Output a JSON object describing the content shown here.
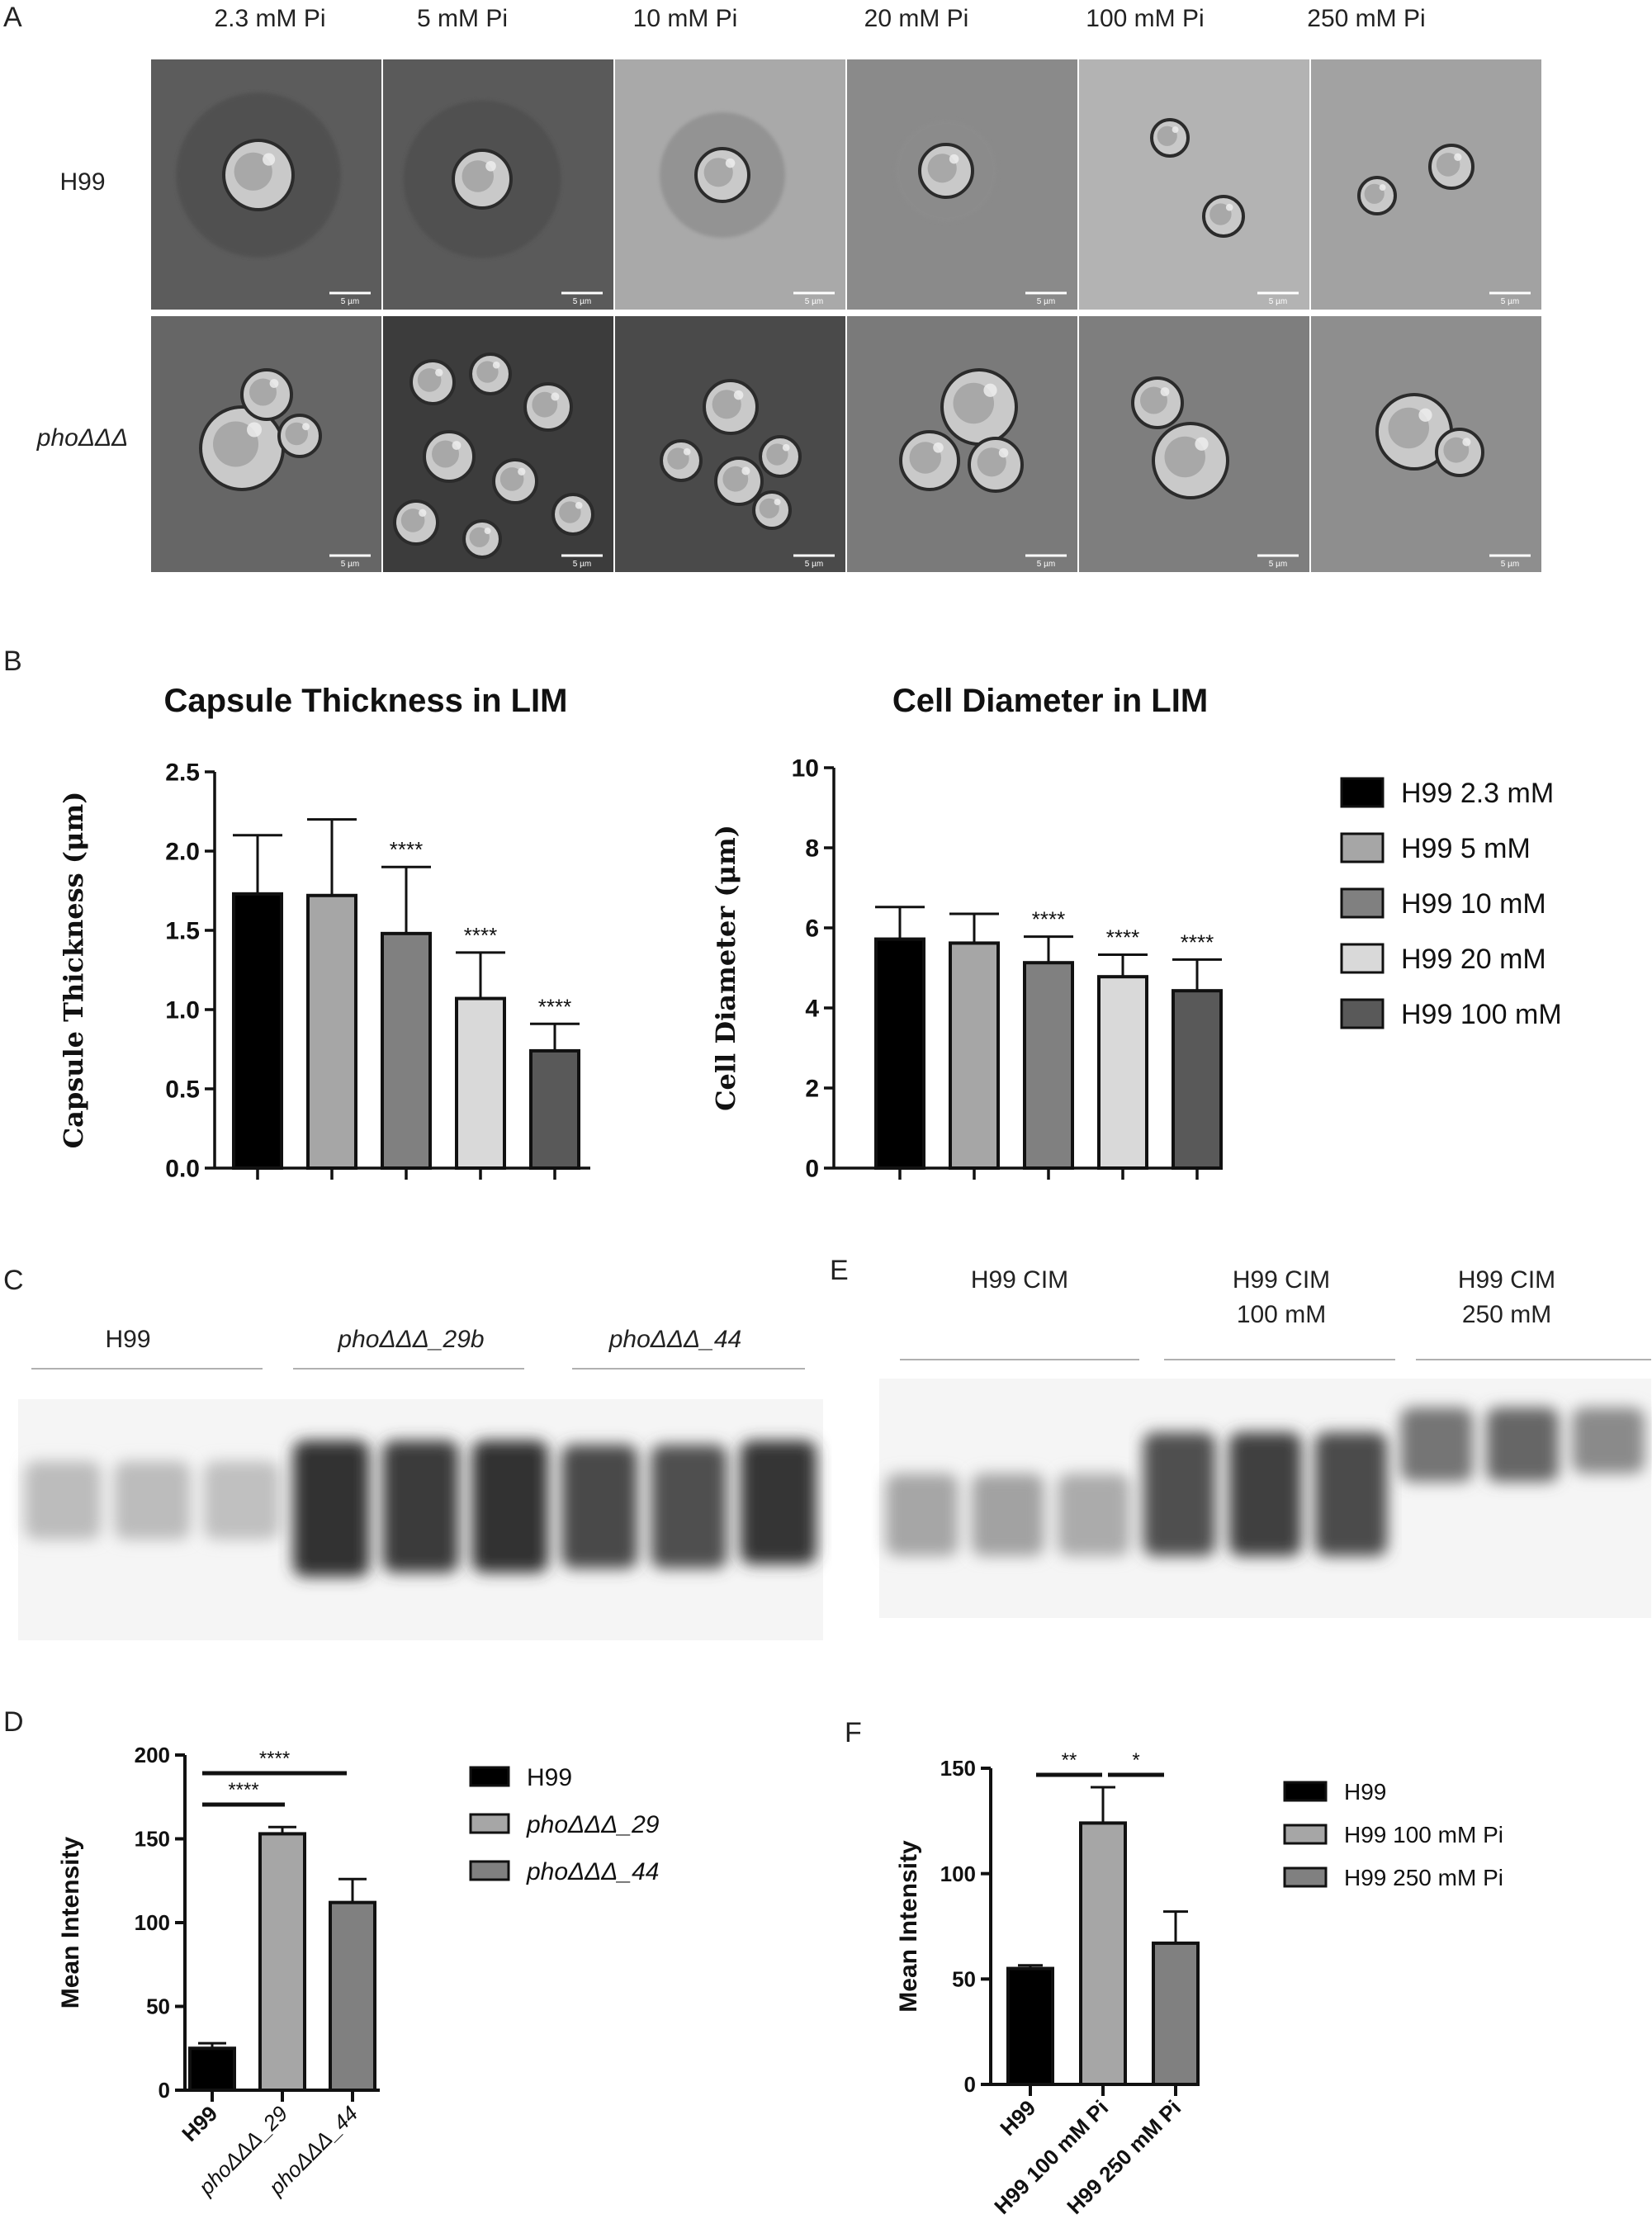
{
  "panel_letters": [
    "A",
    "B",
    "C",
    "D",
    "E",
    "F"
  ],
  "micrographs": {
    "columns": [
      "2.3 mM Pi",
      "5 mM Pi",
      "10 mM Pi",
      "20 mM Pi",
      "100 mM Pi",
      "250 mM Pi"
    ],
    "rows": [
      "H99",
      "phoΔΔΔ"
    ],
    "scale_label": "5 µm"
  },
  "gel_c": {
    "groups": [
      "H99",
      "phoΔΔΔ_29b",
      "phoΔΔΔ_44"
    ],
    "lanes_per_group": 3,
    "lane_intensity": [
      0.22,
      0.22,
      0.2,
      0.86,
      0.82,
      0.86,
      0.76,
      0.72,
      0.84
    ]
  },
  "gel_e": {
    "groups": [
      [
        "H99 CIM"
      ],
      [
        "H99 CIM",
        "100 mM"
      ],
      [
        "H99 CIM",
        "250 mM"
      ]
    ],
    "lanes_per_group": 3,
    "lane_intensity": [
      0.32,
      0.34,
      0.3,
      0.72,
      0.8,
      0.74,
      0.55,
      0.62,
      0.45
    ]
  },
  "chart_data": [
    {
      "id": "capsule",
      "type": "bar",
      "title": "Capsule Thickness in LIM",
      "ylabel": "Capsule Thickness (μm)",
      "ylim": [
        0,
        2.5
      ],
      "yticks": [
        "0.0",
        "0.5",
        "1.0",
        "1.5",
        "2.0",
        "2.5"
      ],
      "categories": [
        "H99 2.3 mM",
        "H99 5 mM",
        "H99 10 mM",
        "H99 20 mM",
        "H99 100 mM"
      ],
      "values": [
        1.73,
        1.72,
        1.48,
        1.07,
        0.74
      ],
      "errors": [
        0.37,
        0.48,
        0.42,
        0.29,
        0.17
      ],
      "annotations": [
        "",
        "",
        "****",
        "****",
        "****"
      ],
      "colors": [
        "#000000",
        "#a6a6a6",
        "#808080",
        "#d9d9d9",
        "#595959"
      ]
    },
    {
      "id": "diameter",
      "type": "bar",
      "title": "Cell Diameter in LIM",
      "ylabel": "Cell Diameter (μm)",
      "ylim": [
        0,
        10
      ],
      "yticks": [
        "0",
        "2",
        "4",
        "6",
        "8",
        "10"
      ],
      "categories": [
        "H99 2.3 mM",
        "H99 5 mM",
        "H99 10 mM",
        "H99 20 mM",
        "H99 100 mM"
      ],
      "values": [
        5.72,
        5.62,
        5.13,
        4.78,
        4.43
      ],
      "errors": [
        0.8,
        0.73,
        0.65,
        0.55,
        0.78
      ],
      "annotations": [
        "",
        "",
        "****",
        "****",
        "****"
      ],
      "colors": [
        "#000000",
        "#a6a6a6",
        "#808080",
        "#d9d9d9",
        "#595959"
      ],
      "legend": [
        "H99 2.3 mM",
        "H99 5 mM",
        "H99 10 mM",
        "H99 20 mM",
        "H99 100 mM"
      ]
    },
    {
      "id": "intensity_d",
      "type": "bar",
      "ylabel": "Mean Intensity",
      "ylim": [
        0,
        200
      ],
      "yticks": [
        "0",
        "50",
        "100",
        "150",
        "200"
      ],
      "categories": [
        "H99",
        "phoΔΔΔ_29",
        "phoΔΔΔ_44"
      ],
      "values": [
        25,
        153,
        112
      ],
      "errors": [
        3,
        4,
        14
      ],
      "colors": [
        "#000000",
        "#a6a6a6",
        "#808080"
      ],
      "legend": [
        "H99",
        "phoΔΔΔ_29",
        "phoΔΔΔ_44"
      ],
      "significance": [
        {
          "from": 0,
          "to": 1,
          "label": "****"
        },
        {
          "from": 0,
          "to": 2,
          "label": "****"
        }
      ]
    },
    {
      "id": "intensity_f",
      "type": "bar",
      "ylabel": "Mean Intensity",
      "ylim": [
        0,
        150
      ],
      "yticks": [
        "0",
        "50",
        "100",
        "150"
      ],
      "categories": [
        "H99",
        "H99 100 mM Pi",
        "H99 250 mM Pi"
      ],
      "values": [
        55,
        124,
        67
      ],
      "errors": [
        1.5,
        17,
        15
      ],
      "colors": [
        "#000000",
        "#a6a6a6",
        "#808080"
      ],
      "legend": [
        "H99",
        "H99 100 mM Pi",
        "H99 250 mM Pi"
      ],
      "significance": [
        {
          "from": 0,
          "to": 1,
          "label": "**"
        },
        {
          "from": 1,
          "to": 2,
          "label": "*"
        }
      ]
    }
  ]
}
